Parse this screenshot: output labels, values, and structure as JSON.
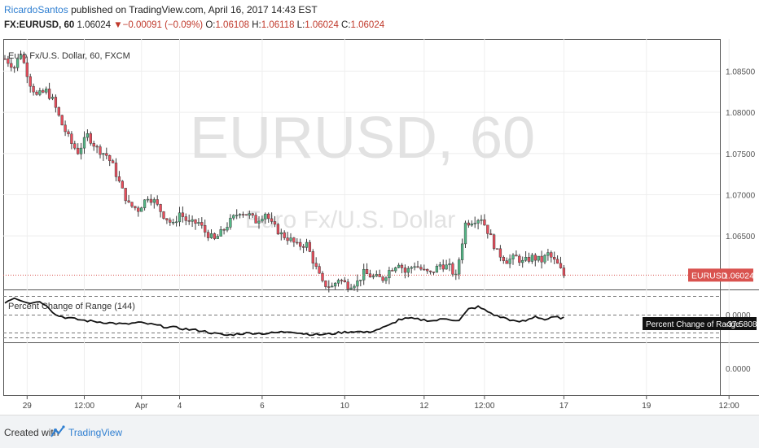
{
  "header": {
    "author": "RicardoSantos",
    "published_text": "published on TradingView.com, April 16, 2017 14:43 EST",
    "symbol": "FX:EURUSD, 60",
    "last": "1.06024",
    "change": "−0.00091 (−0.09%)",
    "o_label": "O:",
    "o_value": "1.06108",
    "h_label": "H:",
    "h_value": "1.06118",
    "l_label": "L:",
    "l_value": "1.06024",
    "c_label": "C:",
    "c_value": "1.06024"
  },
  "colors": {
    "up": "#53b987",
    "down": "#eb4d5c",
    "candle_border": "#3c3c3c",
    "price_tag": "#d9534f",
    "indicator": "#111111",
    "watermark": "#dddddd"
  },
  "chart_data": {
    "type": "candlestick",
    "title": "Euro Fx/U.S. Dollar, 60, FXCM",
    "watermark": {
      "symbol": "EURUSD, 60",
      "description": "Euro Fx/U.S. Dollar"
    },
    "price_axis_ticks": [
      "1.08500",
      "1.08000",
      "1.07500",
      "1.07000",
      "1.06500"
    ],
    "price_axis_values": [
      1.085,
      1.08,
      1.075,
      1.07,
      1.065
    ],
    "ylim": [
      1.0585,
      1.0888
    ],
    "last_price": {
      "label": "EURUSD",
      "value": "1.06024",
      "numeric": 1.06024
    },
    "close_path": [
      [
        0,
        1.0865
      ],
      [
        3,
        1.0855
      ],
      [
        5,
        1.0872
      ],
      [
        8,
        1.0835
      ],
      [
        10,
        1.082
      ],
      [
        13,
        1.0826
      ],
      [
        15,
        1.0815
      ],
      [
        18,
        1.0785
      ],
      [
        21,
        1.0762
      ],
      [
        23,
        1.0752
      ],
      [
        26,
        1.0772
      ],
      [
        29,
        1.0756
      ],
      [
        32,
        1.0748
      ],
      [
        34,
        1.0735
      ],
      [
        37,
        1.0705
      ],
      [
        39,
        1.0688
      ],
      [
        42,
        1.0682
      ],
      [
        45,
        1.0698
      ],
      [
        47,
        1.0692
      ],
      [
        50,
        1.0675
      ],
      [
        53,
        1.0663
      ],
      [
        55,
        1.0678
      ],
      [
        58,
        1.0665
      ],
      [
        61,
        1.0666
      ],
      [
        63,
        1.0655
      ],
      [
        66,
        1.0645
      ],
      [
        69,
        1.0658
      ],
      [
        71,
        1.0668
      ],
      [
        74,
        1.068
      ],
      [
        77,
        1.0675
      ],
      [
        79,
        1.0668
      ],
      [
        82,
        1.0678
      ],
      [
        84,
        1.0664
      ],
      [
        87,
        1.0652
      ],
      [
        90,
        1.0645
      ],
      [
        92,
        1.0638
      ],
      [
        95,
        1.064
      ],
      [
        97,
        1.062
      ],
      [
        100,
        1.0592
      ],
      [
        103,
        1.0588
      ],
      [
        105,
        1.0598
      ],
      [
        108,
        1.059
      ],
      [
        111,
        1.0594
      ],
      [
        113,
        1.0605
      ],
      [
        116,
        1.06
      ],
      [
        119,
        1.0598
      ],
      [
        121,
        1.0608
      ],
      [
        124,
        1.0618
      ],
      [
        126,
        1.0606
      ],
      [
        129,
        1.0615
      ],
      [
        132,
        1.0607
      ],
      [
        134,
        1.0604
      ],
      [
        137,
        1.0615
      ],
      [
        140,
        1.0612
      ],
      [
        142,
        1.06
      ],
      [
        145,
        1.0665
      ],
      [
        148,
        1.067
      ],
      [
        150,
        1.0672
      ],
      [
        153,
        1.0648
      ],
      [
        155,
        1.063
      ],
      [
        158,
        1.062
      ],
      [
        161,
        1.0624
      ],
      [
        163,
        1.0618
      ],
      [
        166,
        1.0624
      ],
      [
        169,
        1.062
      ],
      [
        171,
        1.0628
      ],
      [
        174,
        1.0615
      ],
      [
        176,
        1.0602
      ]
    ],
    "indicator": {
      "name": "Percent Change of Range (144)",
      "tag_label": "Percent Change of Range",
      "tag_value": "-37.5808",
      "axis_ticks": [
        "0.0000",
        "0.0000"
      ],
      "path": [
        [
          0,
          0.02
        ],
        [
          3,
          0.1
        ],
        [
          5,
          0.06
        ],
        [
          8,
          0.0
        ],
        [
          10,
          0.04
        ],
        [
          13,
          -0.02
        ],
        [
          16,
          -0.2
        ],
        [
          19,
          -0.24
        ],
        [
          22,
          -0.27
        ],
        [
          26,
          -0.3
        ],
        [
          30,
          -0.32
        ],
        [
          34,
          -0.34
        ],
        [
          38,
          -0.36
        ],
        [
          42,
          -0.33
        ],
        [
          46,
          -0.36
        ],
        [
          50,
          -0.4
        ],
        [
          54,
          -0.42
        ],
        [
          58,
          -0.45
        ],
        [
          62,
          -0.47
        ],
        [
          66,
          -0.52
        ],
        [
          70,
          -0.55
        ],
        [
          74,
          -0.52
        ],
        [
          78,
          -0.51
        ],
        [
          82,
          -0.52
        ],
        [
          86,
          -0.5
        ],
        [
          90,
          -0.48
        ],
        [
          94,
          -0.52
        ],
        [
          98,
          -0.54
        ],
        [
          102,
          -0.53
        ],
        [
          106,
          -0.5
        ],
        [
          110,
          -0.48
        ],
        [
          114,
          -0.5
        ],
        [
          118,
          -0.44
        ],
        [
          121,
          -0.38
        ],
        [
          124,
          -0.28
        ],
        [
          127,
          -0.26
        ],
        [
          131,
          -0.28
        ],
        [
          135,
          -0.3
        ],
        [
          139,
          -0.26
        ],
        [
          143,
          -0.3
        ],
        [
          146,
          -0.1
        ],
        [
          149,
          -0.06
        ],
        [
          152,
          -0.14
        ],
        [
          155,
          -0.22
        ],
        [
          158,
          -0.26
        ],
        [
          161,
          -0.32
        ],
        [
          164,
          -0.3
        ],
        [
          167,
          -0.22
        ],
        [
          170,
          -0.28
        ],
        [
          173,
          -0.24
        ],
        [
          176,
          -0.25
        ]
      ]
    },
    "x_ticks": [
      {
        "label": "29",
        "i": 7
      },
      {
        "label": "12:00",
        "i": 25
      },
      {
        "label": "Apr",
        "i": 43
      },
      {
        "label": "4",
        "i": 55
      },
      {
        "label": "6",
        "i": 81
      },
      {
        "label": "10",
        "i": 107
      },
      {
        "label": "12",
        "i": 132
      },
      {
        "label": "12:00",
        "i": 151
      },
      {
        "label": "17",
        "i": 176
      },
      {
        "label": "19",
        "i": 202
      },
      {
        "label": "12:00",
        "i": 228
      }
    ]
  },
  "footer": {
    "created_with": "Created with",
    "brand": "TradingView"
  }
}
